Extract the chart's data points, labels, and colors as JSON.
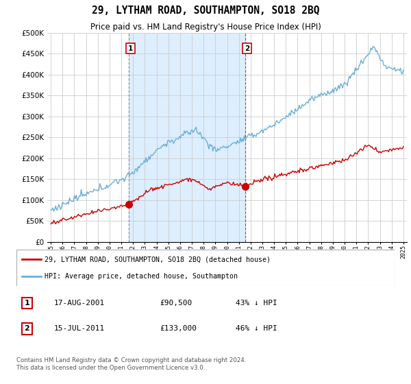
{
  "title": "29, LYTHAM ROAD, SOUTHAMPTON, SO18 2BQ",
  "subtitle": "Price paid vs. HM Land Registry's House Price Index (HPI)",
  "ylim": [
    0,
    500000
  ],
  "yticks": [
    0,
    50000,
    100000,
    150000,
    200000,
    250000,
    300000,
    350000,
    400000,
    450000,
    500000
  ],
  "hpi_color": "#6baed6",
  "price_color": "#cc0000",
  "shade_color": "#ddeeff",
  "annotation1": {
    "label": "1",
    "date": "17-AUG-2001",
    "price": "£90,500",
    "pct": "43% ↓ HPI"
  },
  "annotation2": {
    "label": "2",
    "date": "15-JUL-2011",
    "price": "£133,000",
    "pct": "46% ↓ HPI"
  },
  "legend_price_label": "29, LYTHAM ROAD, SOUTHAMPTON, SO18 2BQ (detached house)",
  "legend_hpi_label": "HPI: Average price, detached house, Southampton",
  "footer": "Contains HM Land Registry data © Crown copyright and database right 2024.\nThis data is licensed under the Open Government Licence v3.0.",
  "vline1_x": 2001.62,
  "vline2_x": 2011.54,
  "marker1_price": 90500,
  "marker2_price": 133000,
  "xlim_left": 1994.7,
  "xlim_right": 2025.3
}
